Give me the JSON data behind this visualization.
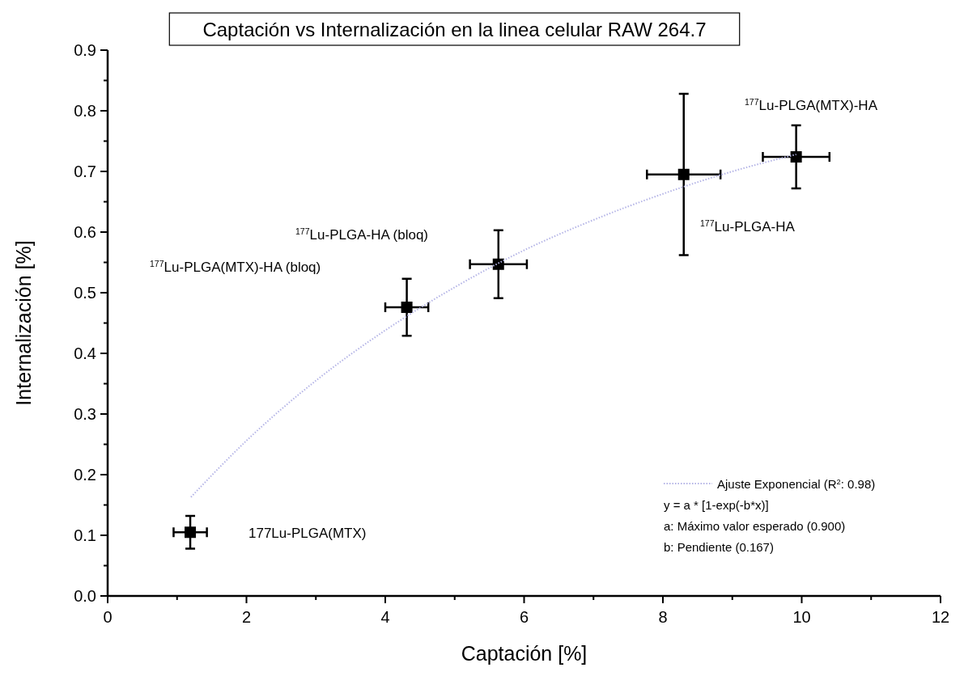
{
  "chart_data": {
    "type": "scatter",
    "title": "Captación vs Internalización en la linea celular RAW 264.7",
    "xlabel": "Captación [%]",
    "ylabel": "Internalización [%]",
    "xlim": [
      0,
      12
    ],
    "ylim": [
      0,
      0.9
    ],
    "xticks": [
      0,
      {
        "value": 1,
        "label": null
      },
      2,
      {
        "value": 3,
        "label": null
      },
      4,
      {
        "value": 5,
        "label": null
      },
      6,
      {
        "value": 7,
        "label": null
      },
      8,
      {
        "value": 9,
        "label": null
      },
      10,
      {
        "value": 11,
        "label": null
      },
      12
    ],
    "yticks": [
      "0.0",
      {
        "value": 0.05,
        "label": null
      },
      0.1,
      {
        "value": 0.15,
        "label": null
      },
      0.2,
      {
        "value": 0.25,
        "label": null
      },
      0.3,
      {
        "value": 0.35,
        "label": null
      },
      0.4,
      {
        "value": 0.45,
        "label": null
      },
      0.5,
      {
        "value": 0.55,
        "label": null
      },
      0.6,
      {
        "value": 0.65,
        "label": null
      },
      0.7,
      {
        "value": 0.75,
        "label": null
      },
      0.8,
      {
        "value": 0.85,
        "label": null
      },
      0.9
    ],
    "series": [
      {
        "type": "scatter",
        "color": "#000000",
        "marker": "square",
        "x": [
          1.19,
          4.31,
          5.63,
          8.3,
          9.92
        ],
        "values": [
          0.105,
          0.476,
          0.547,
          0.695,
          0.724
        ],
        "errors": [
          0.027,
          0.047,
          0.056,
          0.133,
          0.052
        ],
        "xerrors": [
          0.24,
          0.31,
          0.41,
          0.53,
          0.48
        ]
      },
      {
        "type": "line",
        "name": "Ajuste Exponencial (R$^{2}$: 0.98)",
        "color": "#b4b4e6",
        "line_style": "dotted",
        "x": [
          1.2,
          2,
          3,
          4,
          5,
          6,
          7,
          8,
          9,
          9.92
        ],
        "values": [
          0.163,
          0.256,
          0.355,
          0.438,
          0.509,
          0.57,
          0.62,
          0.663,
          0.7,
          0.728
        ]
      }
    ],
    "legend": "bottom right",
    "annotations": [
      "177Lu-PLGA(MTX)",
      "$^{177}$Lu-PLGA(MTX)-HA (bloq)",
      "$^{177}$Lu-PLGA-HA (bloq)",
      "$^{177}$Lu-PLGA-HA",
      "$^{177}$Lu-PLGA(MTX)-HA",
      "y = a * [1-exp(-b*x)]",
      "a: Máximo valor esperado (0.900)",
      "b: Pendiente (0.167)"
    ]
  }
}
